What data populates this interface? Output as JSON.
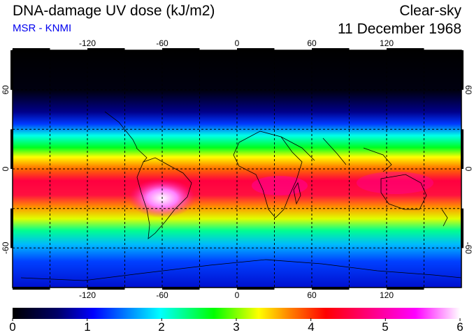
{
  "header": {
    "title": "DNA-damage UV dose (kJ/m2)",
    "subtitle": "MSR - KNMI",
    "condition": "Clear-sky",
    "date": "11 December 1968"
  },
  "colors": {
    "subtitle": "#0000ee",
    "scale": [
      "#000000",
      "#000066",
      "#0000ff",
      "#00ffff",
      "#00ff00",
      "#ffff00",
      "#ff8000",
      "#ff0000",
      "#ff0080",
      "#ff00ff",
      "#ffffff"
    ]
  },
  "map": {
    "projection": "equirectangular",
    "lon_range": [
      -180,
      180
    ],
    "lat_range": [
      -90,
      90
    ],
    "grid": "dashed every 30 degrees",
    "lon_tick_labels": [
      "-120",
      "-60",
      "0",
      "60",
      "120"
    ],
    "lat_tick_labels": [
      "60",
      "0",
      "-60"
    ]
  },
  "colorbar": {
    "min": 0,
    "max": 6,
    "tick_labels": [
      "0",
      "1",
      "2",
      "3",
      "4",
      "5",
      "6"
    ]
  }
}
